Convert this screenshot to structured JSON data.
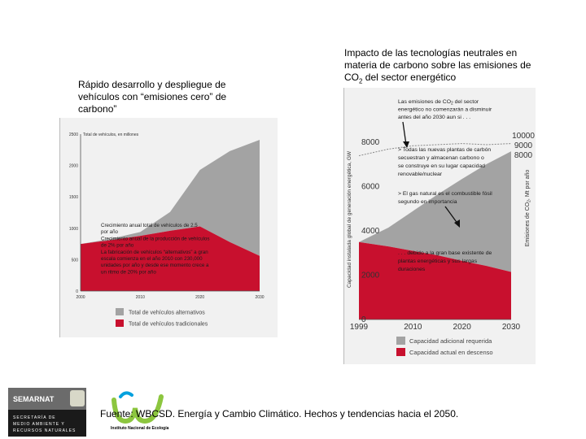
{
  "left_title": "Rápido desarrollo y despliegue de vehículos con “emisiones cero” de carbono”",
  "right_title_line1": "Impacto de las tecnologías  neutrales en",
  "right_title_line2": "materia de carbono sobre las emisiones de",
  "right_title_line3_pre": "CO",
  "right_title_line3_sub": "2",
  "right_title_line3_post": " del sector energético",
  "source": "Fuente: WBCSD. Energía y Cambio Climático. Hechos y tendencias hacia el 2050.",
  "logo_semarnat": {
    "name": "SEMARNAT",
    "line1": "SECRETARÍA DE",
    "line2": "MEDIO AMBIENTE Y",
    "line3": "RECURSOS NATURALES"
  },
  "logo_ine": {
    "name": "Instituto Nacional de Ecología"
  },
  "chart_data": [
    {
      "type": "area",
      "ylabel_top": "Total de vehículos, en millones",
      "x": [
        2000,
        2005,
        2010,
        2015,
        2020,
        2025,
        2030
      ],
      "xticks": [
        2000,
        2010,
        2020,
        2030
      ],
      "xlim": [
        2000,
        2030
      ],
      "yticks": [
        0,
        500,
        1000,
        1500,
        2000,
        2500
      ],
      "ylim": [
        0,
        2500
      ],
      "grid": false,
      "legend_position": "bottom",
      "series": [
        {
          "name": "Total de vehículos alternativos",
          "color": "#a3a3a3",
          "values": [
            0,
            20,
            60,
            300,
            900,
            1450,
            1850
          ]
        },
        {
          "name": "Total de vehículos tradicionales",
          "color": "#c8102e",
          "values": [
            750,
            810,
            880,
            960,
            1030,
            780,
            560
          ]
        }
      ],
      "annotations": [
        "Crecimiento anual total de vehículos de 2.5",
        "por año",
        "Crecimiento anual de la producción de vehículos",
        "de 2% por año",
        "La fabricación de vehículos “alternativos” a gran",
        "escala comienza en el año 2010 con 230,000",
        "unidades por año y desde ese momento crece a",
        "un ritmo de 20% por año"
      ]
    },
    {
      "type": "area",
      "ylabel": "Capacidad instalada global de generación energética, GW",
      "ylabel_right_pre": "Emisiones de CO",
      "ylabel_right_sub": "2",
      "ylabel_right_post": ", Mt por año",
      "x": [
        1999,
        2005,
        2010,
        2015,
        2020,
        2025,
        2030
      ],
      "xticks": [
        1999,
        2010,
        2020,
        2030
      ],
      "xlim": [
        1999,
        2030
      ],
      "yticks": [
        0,
        2000,
        4000,
        6000,
        8000
      ],
      "ylim": [
        0,
        9000
      ],
      "yticks_right": [
        8000,
        9000,
        10000
      ],
      "grid": false,
      "legend_position": "bottom",
      "series": [
        {
          "name": "Capacidad adicional requerida",
          "color": "#a3a3a3",
          "values": [
            0,
            850,
            1800,
            2750,
            3700,
            4600,
            5450
          ]
        },
        {
          "name": "Capacidad actual en descenso",
          "color": "#c8102e",
          "values": [
            3500,
            3300,
            3100,
            2900,
            2650,
            2420,
            2150
          ]
        },
        {
          "name": "Emisiones de CO2",
          "type": "line",
          "color": "#ffffff",
          "values": [
            7400,
            7700,
            7850,
            7900,
            7950,
            7900,
            7950
          ]
        }
      ],
      "annotations": [
        {
          "pre": "Las emisiones de CO",
          "sub": "2",
          "post": " del sector"
        },
        {
          "text": "energético no comenzarán a disminuir"
        },
        {
          "text": "antes del año 2030 aun si . . ."
        },
        {
          "text": "> Todas las nuevas plantas de carbón"
        },
        {
          "text": "secuestran y almacenan carbono o"
        },
        {
          "text": "se construye en su lugar capacidad"
        },
        {
          "text": "renovable/nuclear"
        },
        {
          "text": "> El gas natural es el combustible fósil"
        },
        {
          "text": "segundo en importancia"
        },
        {
          "text": ". . . debido a la gran base existente de"
        },
        {
          "text": "plantas energéticas y sus largas"
        },
        {
          "text": "duraciones"
        }
      ]
    }
  ]
}
